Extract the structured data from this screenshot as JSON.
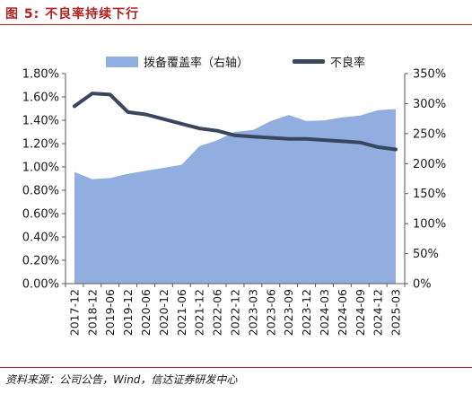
{
  "header": {
    "figure_label": "图 5:",
    "title": "不良率持续下行"
  },
  "footer": {
    "source": "资料来源：公司公告，Wind，信达证券研发中心"
  },
  "colors": {
    "area": "#92aee0",
    "line": "#3a4560",
    "accent": "#b22222"
  },
  "chart_data": {
    "type": "area",
    "categories": [
      "2017-12",
      "2018-12",
      "2019-06",
      "2019-12",
      "2020-06",
      "2020-12",
      "2021-06",
      "2021-12",
      "2022-06",
      "2022-12",
      "2023-03",
      "2023-06",
      "2023-09",
      "2023-12",
      "2024-03",
      "2024-06",
      "2024-09",
      "2024-12",
      "2025-03"
    ],
    "series": [
      {
        "name": "拨备覆盖率（右轴）",
        "type": "area",
        "axis": "right",
        "values": [
          186,
          174,
          176,
          183,
          188,
          193,
          198,
          229,
          239,
          253,
          256,
          271,
          281,
          271,
          272,
          277,
          280,
          289,
          291
        ]
      },
      {
        "name": "不良率",
        "type": "line",
        "axis": "left",
        "values": [
          1.52,
          1.63,
          1.62,
          1.47,
          1.45,
          1.41,
          1.37,
          1.33,
          1.31,
          1.27,
          1.26,
          1.25,
          1.24,
          1.24,
          1.23,
          1.22,
          1.21,
          1.17,
          1.15
        ]
      }
    ],
    "y_left": {
      "ticks": [
        "0.00%",
        "0.20%",
        "0.40%",
        "0.60%",
        "0.80%",
        "1.00%",
        "1.20%",
        "1.40%",
        "1.60%",
        "1.80%"
      ],
      "ylim": [
        0,
        1.8
      ]
    },
    "y_right": {
      "ticks": [
        "0%",
        "50%",
        "100%",
        "150%",
        "200%",
        "250%",
        "300%",
        "350%"
      ],
      "ylim": [
        0,
        350
      ]
    },
    "legend_position": "top",
    "grid": false
  }
}
